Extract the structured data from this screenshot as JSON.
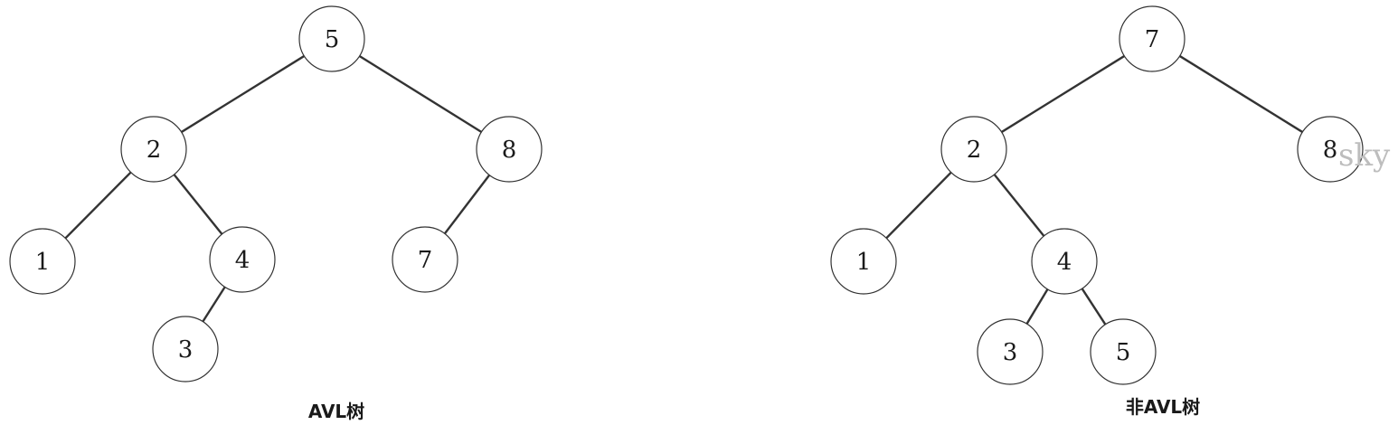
{
  "trees": [
    {
      "id": "avl",
      "caption": "AVL树",
      "nodes": [
        {
          "id": "a5",
          "label": "5"
        },
        {
          "id": "a2",
          "label": "2"
        },
        {
          "id": "a8",
          "label": "8"
        },
        {
          "id": "a1",
          "label": "1"
        },
        {
          "id": "a4",
          "label": "4"
        },
        {
          "id": "a7",
          "label": "7"
        },
        {
          "id": "a3",
          "label": "3"
        }
      ],
      "edges": [
        [
          "a5",
          "a2"
        ],
        [
          "a5",
          "a8"
        ],
        [
          "a2",
          "a1"
        ],
        [
          "a2",
          "a4"
        ],
        [
          "a8",
          "a7"
        ],
        [
          "a4",
          "a3"
        ]
      ]
    },
    {
      "id": "non-avl",
      "caption": "非AVL树",
      "nodes": [
        {
          "id": "b7",
          "label": "7"
        },
        {
          "id": "b2",
          "label": "2"
        },
        {
          "id": "b8",
          "label": "8"
        },
        {
          "id": "b1",
          "label": "1"
        },
        {
          "id": "b4",
          "label": "4"
        },
        {
          "id": "b3",
          "label": "3"
        },
        {
          "id": "b5",
          "label": "5"
        }
      ],
      "edges": [
        [
          "b7",
          "b2"
        ],
        [
          "b7",
          "b8"
        ],
        [
          "b2",
          "b1"
        ],
        [
          "b2",
          "b4"
        ],
        [
          "b4",
          "b3"
        ],
        [
          "b4",
          "b5"
        ]
      ]
    }
  ],
  "watermark": "sky"
}
